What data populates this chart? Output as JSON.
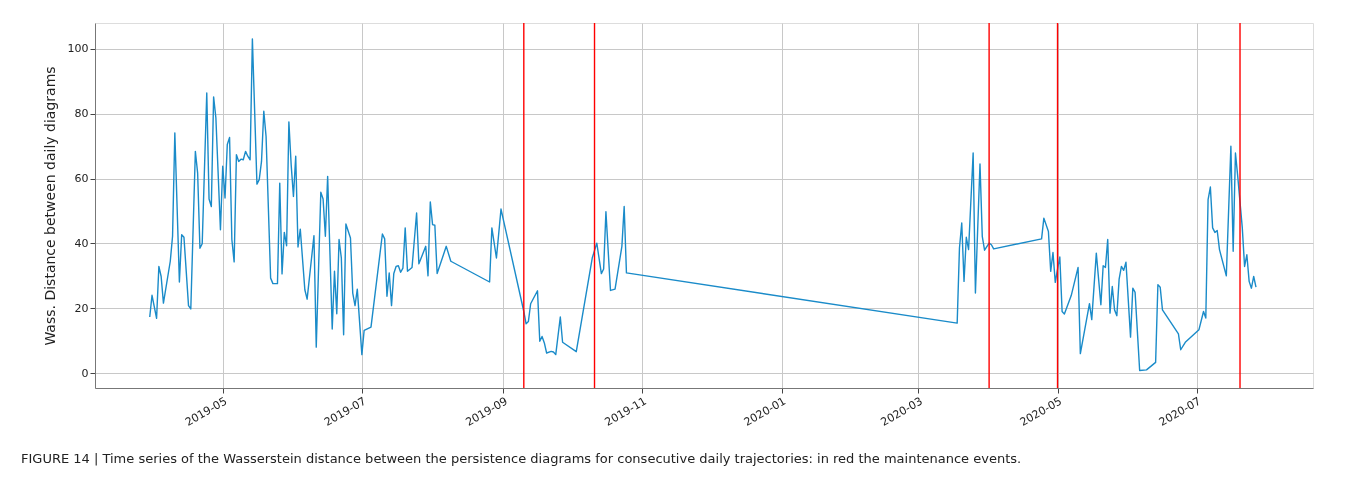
{
  "chart_data": {
    "type": "line",
    "ylabel": "Wass. Distance between daily diagrams",
    "annotations": [
      "FIGURE 14 | Time series of the Wasserstein distance between the persistence diagrams for consecutive daily trajectories: in red the maintenance events."
    ],
    "xlim": [
      "2019-03-06",
      "2020-08-21"
    ],
    "xticks": [
      "2019-05",
      "2019-07",
      "2019-09",
      "2019-11",
      "2020-01",
      "2020-03",
      "2020-05",
      "2020-07"
    ],
    "ylim": [
      -4.6,
      108
    ],
    "yticks": [
      0,
      20,
      40,
      60,
      80,
      100
    ],
    "grid": true,
    "marker": "none",
    "line_style": "solid",
    "x": [
      "2019-03-30",
      "2019-03-31",
      "2019-04-02",
      "2019-04-03",
      "2019-04-04",
      "2019-04-05",
      "2019-04-08",
      "2019-04-09",
      "2019-04-10",
      "2019-04-12",
      "2019-04-13",
      "2019-04-14",
      "2019-04-16",
      "2019-04-17",
      "2019-04-19",
      "2019-04-20",
      "2019-04-21",
      "2019-04-22",
      "2019-04-24",
      "2019-04-25",
      "2019-04-26",
      "2019-04-27",
      "2019-04-28",
      "2019-04-30",
      "2019-05-01",
      "2019-05-02",
      "2019-05-03",
      "2019-05-04",
      "2019-05-05",
      "2019-05-06",
      "2019-05-07",
      "2019-05-08",
      "2019-05-09",
      "2019-05-10",
      "2019-05-11",
      "2019-05-12",
      "2019-05-13",
      "2019-05-14",
      "2019-05-16",
      "2019-05-17",
      "2019-05-18",
      "2019-05-19",
      "2019-05-20",
      "2019-05-22",
      "2019-05-23",
      "2019-05-25",
      "2019-05-26",
      "2019-05-27",
      "2019-05-28",
      "2019-05-29",
      "2019-05-30",
      "2019-05-31",
      "2019-06-01",
      "2019-06-02",
      "2019-06-03",
      "2019-06-04",
      "2019-06-06",
      "2019-06-07",
      "2019-06-10",
      "2019-06-11",
      "2019-06-13",
      "2019-06-14",
      "2019-06-15",
      "2019-06-16",
      "2019-06-18",
      "2019-06-19",
      "2019-06-20",
      "2019-06-21",
      "2019-06-22",
      "2019-06-23",
      "2019-06-24",
      "2019-06-26",
      "2019-06-27",
      "2019-06-28",
      "2019-06-29",
      "2019-07-01",
      "2019-07-02",
      "2019-07-05",
      "2019-07-10",
      "2019-07-11",
      "2019-07-12",
      "2019-07-13",
      "2019-07-14",
      "2019-07-15",
      "2019-07-16",
      "2019-07-17",
      "2019-07-18",
      "2019-07-19",
      "2019-07-20",
      "2019-07-21",
      "2019-07-23",
      "2019-07-25",
      "2019-07-26",
      "2019-07-29",
      "2019-07-30",
      "2019-07-31",
      "2019-08-01",
      "2019-08-02",
      "2019-08-03",
      "2019-08-07",
      "2019-08-09",
      "2019-08-26",
      "2019-08-27",
      "2019-08-29",
      "2019-08-31",
      "2019-09-10",
      "2019-09-11",
      "2019-09-12",
      "2019-09-13",
      "2019-09-16",
      "2019-09-17",
      "2019-09-18",
      "2019-09-19",
      "2019-09-20",
      "2019-09-22",
      "2019-09-23",
      "2019-09-24",
      "2019-09-26",
      "2019-09-27",
      "2019-10-03",
      "2019-10-10",
      "2019-10-12",
      "2019-10-14",
      "2019-10-15",
      "2019-10-16",
      "2019-10-18",
      "2019-10-20",
      "2019-10-23",
      "2019-10-24",
      "2019-10-25",
      "2020-03-18",
      "2020-03-19",
      "2020-03-20",
      "2020-03-21",
      "2020-03-22",
      "2020-03-23",
      "2020-03-25",
      "2020-03-26",
      "2020-03-28",
      "2020-03-29",
      "2020-03-30",
      "2020-04-01",
      "2020-04-02",
      "2020-04-03",
      "2020-04-24",
      "2020-04-25",
      "2020-04-27",
      "2020-04-28",
      "2020-04-29",
      "2020-04-30",
      "2020-05-01",
      "2020-05-02",
      "2020-05-03",
      "2020-05-04",
      "2020-05-07",
      "2020-05-10",
      "2020-05-11",
      "2020-05-15",
      "2020-05-16",
      "2020-05-18",
      "2020-05-20",
      "2020-05-21",
      "2020-05-22",
      "2020-05-23",
      "2020-05-24",
      "2020-05-25",
      "2020-05-26",
      "2020-05-27",
      "2020-05-28",
      "2020-05-29",
      "2020-05-30",
      "2020-05-31",
      "2020-06-02",
      "2020-06-03",
      "2020-06-04",
      "2020-06-06",
      "2020-06-09",
      "2020-06-13",
      "2020-06-14",
      "2020-06-15",
      "2020-06-16",
      "2020-06-23",
      "2020-06-24",
      "2020-06-26",
      "2020-07-02",
      "2020-07-04",
      "2020-07-05",
      "2020-07-06",
      "2020-07-07",
      "2020-07-08",
      "2020-07-09",
      "2020-07-10",
      "2020-07-11",
      "2020-07-14",
      "2020-07-16",
      "2020-07-17",
      "2020-07-18",
      "2020-07-19",
      "2020-07-21",
      "2020-07-22",
      "2020-07-23",
      "2020-07-24",
      "2020-07-25",
      "2020-07-26",
      "2020-07-27"
    ],
    "series": [
      {
        "color": "#1a8bc9",
        "values": [
          17.3,
          24.0,
          16.9,
          32.9,
          29.8,
          21.6,
          34.5,
          42.2,
          74.1,
          28.1,
          42.7,
          41.9,
          20.8,
          19.8,
          68.4,
          61.7,
          38.5,
          39.9,
          86.4,
          53.7,
          51.4,
          85.2,
          78.7,
          44.2,
          63.8,
          54.0,
          70.5,
          72.7,
          41.2,
          34.3,
          67.4,
          65.3,
          66.0,
          65.8,
          68.4,
          66.9,
          65.8,
          103.1,
          58.3,
          59.7,
          65.3,
          80.8,
          73.0,
          29.3,
          27.6,
          27.6,
          58.6,
          30.6,
          43.4,
          39.3,
          77.5,
          64.3,
          54.5,
          66.9,
          38.9,
          44.4,
          25.7,
          22.8,
          42.4,
          8.0,
          55.8,
          53.7,
          42.2,
          60.7,
          13.6,
          31.4,
          18.3,
          41.2,
          35.5,
          11.8,
          46.0,
          41.7,
          24.7,
          20.8,
          25.9,
          5.7,
          13.2,
          14.2,
          42.9,
          41.4,
          23.7,
          30.9,
          20.8,
          30.7,
          32.9,
          33.1,
          31.1,
          32.4,
          44.8,
          31.4,
          32.6,
          49.4,
          33.7,
          39.1,
          30.0,
          52.8,
          45.8,
          45.6,
          30.7,
          39.1,
          34.5,
          28.1,
          44.8,
          35.5,
          50.6,
          19.0,
          15.2,
          15.9,
          21.4,
          25.4,
          9.8,
          11.3,
          9.3,
          6.2,
          6.7,
          6.5,
          5.7,
          17.3,
          9.5,
          6.6,
          35.5,
          40.1,
          30.7,
          32.1,
          49.8,
          25.5,
          25.9,
          39.1,
          51.4,
          30.9,
          15.4,
          38.6,
          46.3,
          28.3,
          41.9,
          38.1,
          67.9,
          24.7,
          64.5,
          42.2,
          37.9,
          40.1,
          39.6,
          38.3,
          41.4,
          47.8,
          43.7,
          31.4,
          37.2,
          28.0,
          32.1,
          35.8,
          19.0,
          18.2,
          23.9,
          32.6,
          6.0,
          21.4,
          16.5,
          37.0,
          21.1,
          33.1,
          32.6,
          41.2,
          18.5,
          26.7,
          19.5,
          17.7,
          29.0,
          32.9,
          31.7,
          34.2,
          11.1,
          26.2,
          24.9,
          0.8,
          1.0,
          3.3,
          27.3,
          26.5,
          19.5,
          12.1,
          7.2,
          9.5,
          13.4,
          19.0,
          17.0,
          53.5,
          57.4,
          44.8,
          43.4,
          44.0,
          38.1,
          30.0,
          70.0,
          37.6,
          67.9,
          60.7,
          44.8,
          32.9,
          36.5,
          28.3,
          26.2,
          29.8,
          26.5
        ]
      }
    ],
    "ref_lines": [
      {
        "axis": "x",
        "value": "2019-09-10",
        "color": "#ff0000"
      },
      {
        "axis": "x",
        "value": "2019-10-11",
        "color": "#ff0000"
      },
      {
        "axis": "x",
        "value": "2020-04-01",
        "color": "#ff0000"
      },
      {
        "axis": "x",
        "value": "2020-05-01",
        "color": "#ff0000"
      },
      {
        "axis": "x",
        "value": "2020-07-20",
        "color": "#ff0000"
      }
    ]
  }
}
